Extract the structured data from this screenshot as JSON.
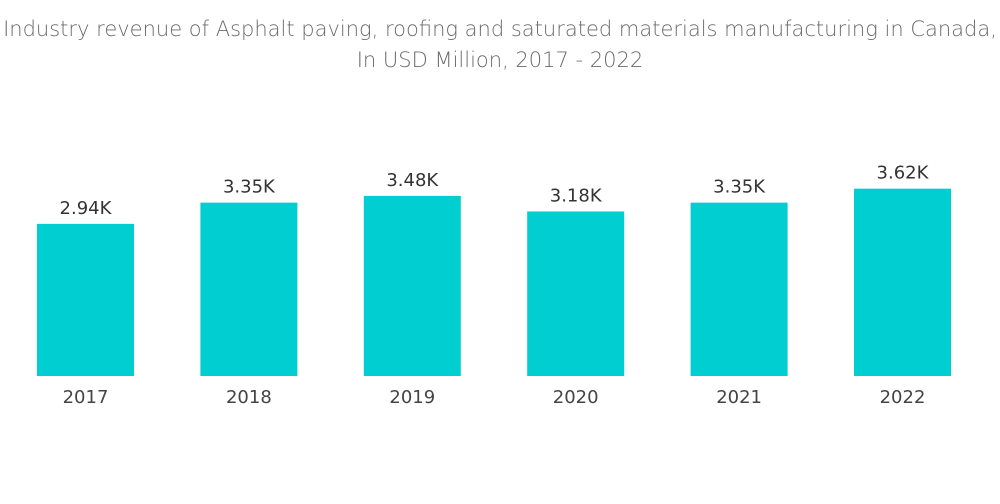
{
  "chart_data": {
    "type": "bar",
    "title": "Industry revenue of Asphalt paving, roofing and saturated materials manufacturing in Canada, In USD Million, 2017 - 2022",
    "categories": [
      "2017",
      "2018",
      "2019",
      "2020",
      "2021",
      "2022"
    ],
    "values": [
      2.94,
      3.35,
      3.48,
      3.18,
      3.35,
      3.62
    ],
    "data_labels": [
      "2.94K",
      "3.35K",
      "3.48K",
      "3.18K",
      "3.35K",
      "3.62K"
    ],
    "unit": "K",
    "xlabel": "",
    "ylabel": "",
    "ylim": [
      0,
      4
    ],
    "grid": false,
    "legend": "none",
    "bar_color": "#00CED1"
  }
}
